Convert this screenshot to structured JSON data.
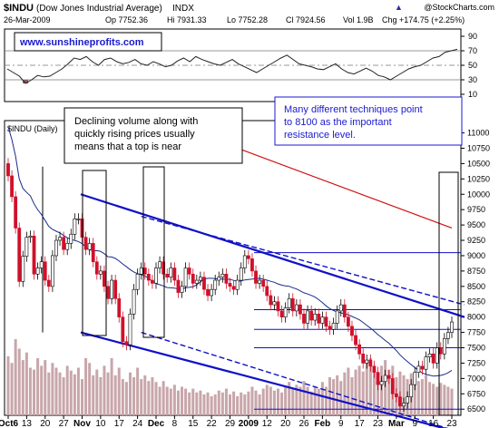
{
  "header": {
    "symbol": "$INDU",
    "name": "(Dow Jones Industrial Average)",
    "exchange": "INDX",
    "date": "26-Mar-2009",
    "open": "Op 7752.36",
    "high": "Hi 7931.33",
    "low": "Lo 7752.28",
    "close": "Cl 7924.56",
    "volume": "Vol 1.9B",
    "change": "Chg +174.75 (+2.25%)",
    "arrow": "▲",
    "copyright": "@StockCharts.com"
  },
  "rsi_panel": {
    "watermark": "www.sunshineprofits.com",
    "ticks": [
      "90",
      "70",
      "50",
      "30",
      "10"
    ],
    "tick_values": [
      90,
      70,
      50,
      30,
      10
    ],
    "ylim": [
      0,
      100
    ],
    "line_color": "#222222",
    "fill_color": "#8b5a5a"
  },
  "price_panel": {
    "label": "$INDU (Daily)",
    "ticks": [
      "11000",
      "10750",
      "10500",
      "10250",
      "10000",
      "9750",
      "9500",
      "9250",
      "9000",
      "8750",
      "8500",
      "8250",
      "8000",
      "7750",
      "7500",
      "7250",
      "7000",
      "6750",
      "6500"
    ],
    "tick_values": [
      11000,
      10750,
      10500,
      10250,
      10000,
      9750,
      9500,
      9250,
      9000,
      8750,
      8500,
      8250,
      8000,
      7750,
      7500,
      7250,
      7000,
      6750,
      6500
    ]
  },
  "annotations": {
    "left_box": [
      "Declining volume along with",
      "quickly rising prices usually",
      "means that a top is near"
    ],
    "right_box": [
      "Many different techniques point",
      "to 8100 as the important",
      "resistance level."
    ],
    "right_box_color": "#1a1ad0"
  },
  "x_axis": {
    "labels": [
      "Oct6",
      "13",
      "20",
      "27",
      "Nov",
      "10",
      "17",
      "24",
      "Dec",
      "8",
      "15",
      "22",
      "29",
      "2009",
      "12",
      "20",
      "26",
      "Feb",
      "9",
      "17",
      "23",
      "Mar",
      "9",
      "16",
      "23"
    ],
    "bold": [
      "Oct6",
      "Nov",
      "Dec",
      "2009",
      "Feb",
      "Mar"
    ]
  },
  "colors": {
    "up": "#ffffff",
    "down": "#d0102a",
    "trend": "#1010c8",
    "ma_red": "#d01010",
    "ma_blue": "#1a2a8a",
    "volume": "#c8a6aa"
  },
  "chart_data": {
    "type": "candlestick",
    "title": "$INDU (Dow Jones Industrial Average) INDX",
    "date_range": [
      "2008-10-06",
      "2009-03-26"
    ],
    "last_bar": {
      "date": "2009-03-26",
      "open": 7752.36,
      "high": 7931.33,
      "low": 7752.28,
      "close": 7924.56,
      "volume": "1.9B",
      "change": 174.75,
      "change_pct": 2.25
    },
    "close_series": [
      10300,
      9960,
      9450,
      8580,
      8990,
      9300,
      9320,
      8700,
      8800,
      8900,
      8600,
      8500,
      9000,
      9250,
      9300,
      9100,
      9200,
      9350,
      9600,
      9600,
      9300,
      9100,
      9200,
      8900,
      8700,
      8750,
      8500,
      8300,
      8600,
      8300,
      8000,
      7600,
      7550,
      8050,
      8450,
      8700,
      8800,
      8700,
      8600,
      8550,
      8800,
      8900,
      8700,
      8650,
      8800,
      8600,
      8400,
      8500,
      8800,
      8700,
      8550,
      8600,
      8650,
      8450,
      8350,
      8450,
      8600,
      8650,
      8700,
      8550,
      8500,
      8450,
      8600,
      8800,
      9000,
      8950,
      8750,
      8550,
      8600,
      8500,
      8350,
      8200,
      8250,
      8100,
      8000,
      8150,
      8300,
      8100,
      8200,
      8050,
      7900,
      8100,
      7950,
      8050,
      7900,
      8000,
      7850,
      7800,
      7900,
      8100,
      8200,
      8000,
      7850,
      7700,
      7550,
      7400,
      7250,
      7300,
      7200,
      7100,
      6900,
      6950,
      7050,
      7000,
      6750,
      6700,
      6550,
      6600,
      6700,
      6900,
      7100,
      7200,
      7150,
      7350,
      7400,
      7250,
      7500,
      7400,
      7650,
      7750,
      7920
    ],
    "volume_series": [
      62,
      55,
      80,
      70,
      58,
      66,
      50,
      48,
      60,
      52,
      58,
      45,
      55,
      50,
      45,
      40,
      52,
      47,
      43,
      50,
      38,
      60,
      55,
      42,
      48,
      40,
      52,
      45,
      60,
      42,
      50,
      38,
      35,
      45,
      40,
      50,
      38,
      42,
      36,
      40,
      35,
      30,
      36,
      30,
      28,
      32,
      26,
      30,
      28,
      24,
      28,
      24,
      26,
      22,
      24,
      20,
      22,
      26,
      24,
      28,
      22,
      25,
      20,
      24,
      22,
      25,
      30,
      26,
      22,
      28,
      32,
      30,
      26,
      28,
      24,
      30,
      35,
      28,
      32,
      30,
      36,
      30,
      25,
      30,
      28,
      35,
      30,
      40,
      38,
      42,
      36,
      45,
      50,
      40,
      48,
      52,
      46,
      55,
      60,
      50,
      44,
      52,
      58,
      48,
      52,
      40,
      46,
      42,
      38,
      44,
      40,
      36,
      38,
      42,
      35,
      33,
      30,
      34,
      32,
      30,
      28
    ],
    "moving_averages": [
      {
        "from": 9800,
        "to": 9450
      },
      {
        "from": 11050,
        "to": 7820
      }
    ],
    "rsi": [
      45,
      40,
      35,
      25,
      30,
      36,
      34,
      35,
      40,
      45,
      52,
      60,
      58,
      62,
      55,
      50,
      58,
      60,
      55,
      52,
      54,
      58,
      52,
      50,
      55,
      52,
      48,
      50,
      56,
      60,
      55,
      62,
      58,
      55,
      52,
      50,
      54,
      58,
      52,
      48,
      44,
      40,
      45,
      50,
      55,
      60,
      64,
      58,
      52,
      50,
      48,
      45,
      44,
      48,
      52,
      45,
      40,
      38,
      42,
      46,
      42,
      36,
      34,
      30,
      35,
      40,
      45,
      48,
      50,
      55,
      60,
      62,
      68,
      70,
      72
    ],
    "channel": {
      "upper": [
        [
          0,
          10000
        ],
        [
          1,
          8000
        ]
      ],
      "lower": [
        [
          0,
          7750
        ],
        [
          1,
          6100
        ]
      ],
      "upper_dashed": [
        [
          0.3,
          9640
        ],
        [
          1,
          8200
        ]
      ],
      "lower_dashed": [
        [
          0.3,
          7750
        ],
        [
          1,
          6100
        ]
      ]
    },
    "horizontal_levels": [
      9050,
      8120,
      7800,
      7500,
      6500
    ],
    "resistance": 8100,
    "ylim": [
      6400,
      11200
    ]
  }
}
